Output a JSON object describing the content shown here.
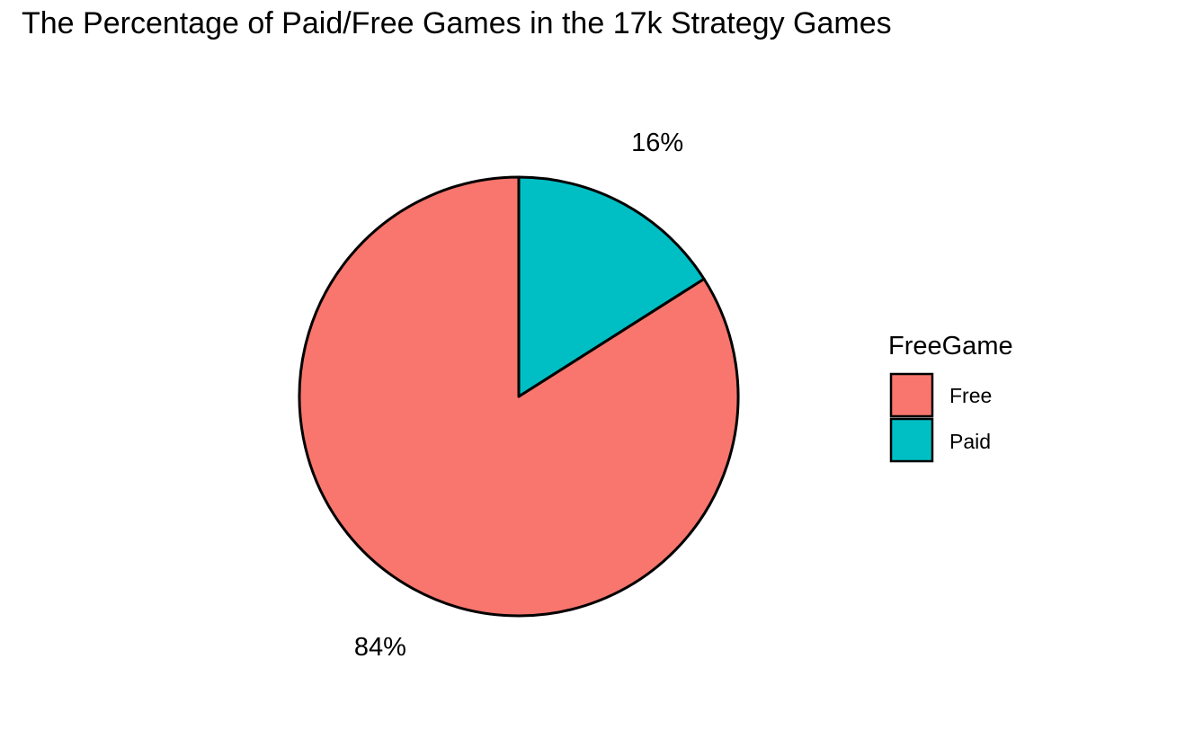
{
  "chart_data": {
    "type": "pie",
    "title": "The Percentage of Paid/Free Games in the 17k Strategy Games",
    "categories": [
      "Free",
      "Paid"
    ],
    "values": [
      84,
      16
    ],
    "labels": [
      "84%",
      "16%"
    ],
    "colors": [
      "#F8766D",
      "#00BFC4"
    ],
    "start": "12 o'clock",
    "direction": "counterclockwise",
    "legend": {
      "title": "FreeGame",
      "position": "right",
      "items": [
        "Free",
        "Paid"
      ]
    }
  }
}
